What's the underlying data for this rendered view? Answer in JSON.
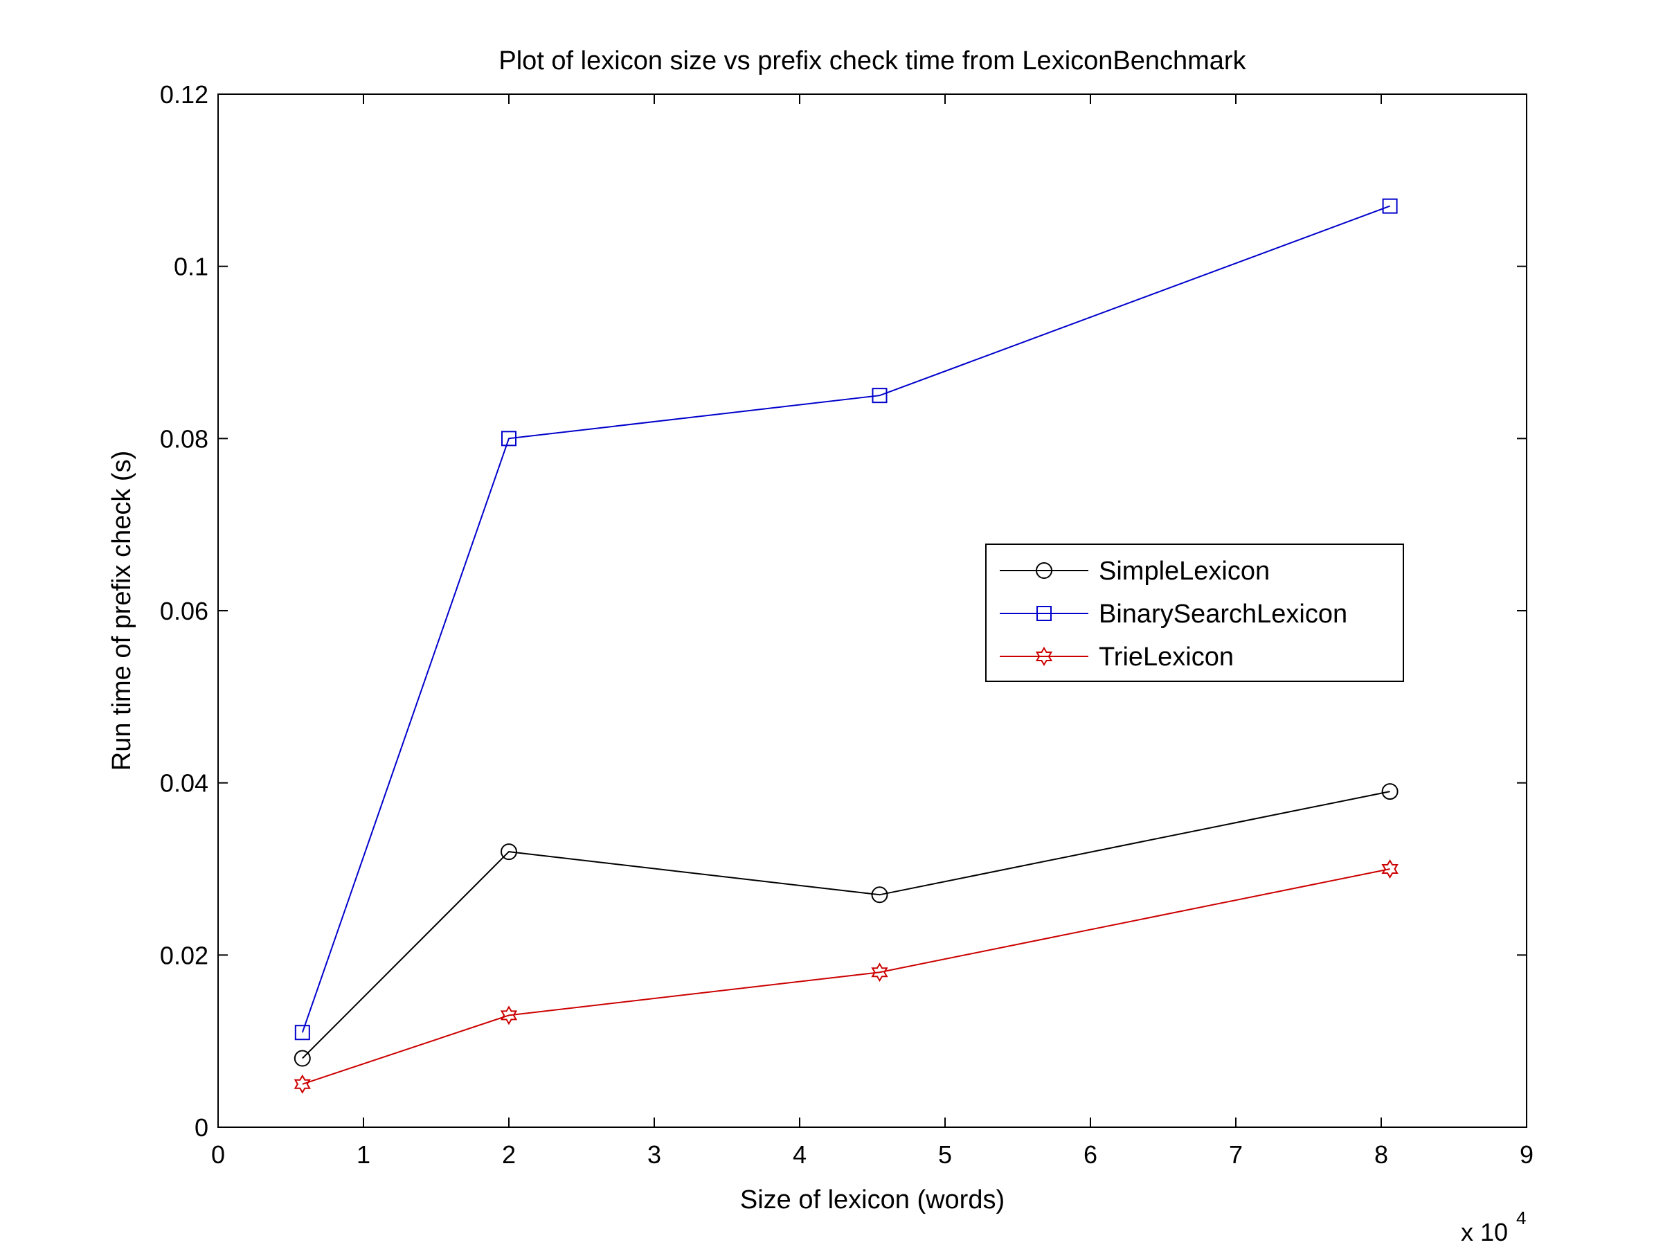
{
  "chart_data": {
    "type": "line",
    "title": "Plot of lexicon size vs prefix check time from LexiconBenchmark",
    "xlabel": "Size of lexicon (words)",
    "ylabel": "Run time of prefix check (s)",
    "x_multiplier": "x 10",
    "x_multiplier_exp": "4",
    "xlim": [
      0,
      9
    ],
    "ylim": [
      0,
      0.12
    ],
    "xticks": [
      0,
      1,
      2,
      3,
      4,
      5,
      6,
      7,
      8,
      9
    ],
    "yticks": [
      0,
      0.02,
      0.04,
      0.06,
      0.08,
      0.1,
      0.12
    ],
    "xtick_labels": [
      "0",
      "1",
      "2",
      "3",
      "4",
      "5",
      "6",
      "7",
      "8",
      "9"
    ],
    "ytick_labels": [
      "0",
      "0.02",
      "0.04",
      "0.06",
      "0.08",
      "0.1",
      "0.12"
    ],
    "grid": false,
    "legend_position": "right-center",
    "series": [
      {
        "name": "SimpleLexicon",
        "color": "#000000",
        "marker": "circle",
        "x": [
          0.58,
          2.0,
          4.55,
          8.06
        ],
        "y": [
          0.008,
          0.032,
          0.027,
          0.039
        ]
      },
      {
        "name": "BinarySearchLexicon",
        "color": "#0000cc",
        "marker": "square",
        "x": [
          0.58,
          2.0,
          4.55,
          8.06
        ],
        "y": [
          0.011,
          0.08,
          0.085,
          0.107
        ]
      },
      {
        "name": "TrieLexicon",
        "color": "#cc0000",
        "marker": "hexagram",
        "x": [
          0.58,
          2.0,
          4.55,
          8.06
        ],
        "y": [
          0.005,
          0.013,
          0.018,
          0.03
        ]
      }
    ]
  }
}
